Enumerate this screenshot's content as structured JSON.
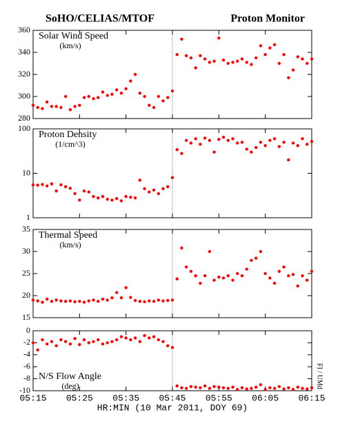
{
  "header": {
    "left": "SoHO/CELIAS/MTOF",
    "right": "Proton Monitor"
  },
  "credit": "FI / UMd",
  "chart_data": [
    {
      "type": "scatter",
      "title": "Solar Wind Speed",
      "subtitle": "(km/s)",
      "color": "#ff0000",
      "xlim": [
        "05:15",
        "06:15"
      ],
      "vline": "05:45",
      "ylim": [
        280,
        360
      ],
      "yticks": [
        280,
        300,
        320,
        340,
        360
      ],
      "x": [
        "05:15",
        "05:16",
        "05:17",
        "05:18",
        "05:19",
        "05:20",
        "05:21",
        "05:22",
        "05:23",
        "05:24",
        "05:25",
        "05:26",
        "05:27",
        "05:28",
        "05:29",
        "05:30",
        "05:31",
        "05:32",
        "05:33",
        "05:34",
        "05:35",
        "05:36",
        "05:37",
        "05:38",
        "05:39",
        "05:40",
        "05:41",
        "05:42",
        "05:43",
        "05:44",
        "05:45",
        "05:46",
        "05:47",
        "05:48",
        "05:49",
        "05:50",
        "05:51",
        "05:52",
        "05:53",
        "05:54",
        "05:55",
        "05:56",
        "05:57",
        "05:58",
        "05:59",
        "06:00",
        "06:01",
        "06:02",
        "06:03",
        "06:04",
        "06:05",
        "06:06",
        "06:07",
        "06:08",
        "06:09",
        "06:10",
        "06:11",
        "06:12",
        "06:13",
        "06:14",
        "06:15"
      ],
      "values": [
        292,
        290,
        289,
        295,
        291,
        291,
        290,
        300,
        288,
        291,
        292,
        299,
        300,
        298,
        299,
        304,
        301,
        302,
        306,
        303,
        307,
        314,
        320,
        303,
        300,
        292,
        290,
        300,
        296,
        299,
        305,
        338,
        352,
        337,
        335,
        326,
        337,
        334,
        331,
        332,
        353,
        333,
        330,
        331,
        332,
        334,
        331,
        329,
        335,
        346,
        338,
        344,
        347,
        330,
        338,
        317,
        324,
        336,
        334,
        330,
        334
      ]
    },
    {
      "type": "scatter",
      "title": "Proton Density",
      "subtitle": "(1/cm^3)",
      "color": "#ff0000",
      "log": true,
      "xlim": [
        "05:15",
        "06:15"
      ],
      "vline": "05:45",
      "ylim": [
        1,
        100
      ],
      "yticks": [
        1,
        10,
        100
      ],
      "x": [
        "05:15",
        "05:16",
        "05:17",
        "05:18",
        "05:19",
        "05:20",
        "05:21",
        "05:22",
        "05:23",
        "05:24",
        "05:25",
        "05:26",
        "05:27",
        "05:28",
        "05:29",
        "05:30",
        "05:31",
        "05:32",
        "05:33",
        "05:34",
        "05:35",
        "05:36",
        "05:37",
        "05:38",
        "05:39",
        "05:40",
        "05:41",
        "05:42",
        "05:43",
        "05:44",
        "05:45",
        "05:46",
        "05:47",
        "05:48",
        "05:49",
        "05:50",
        "05:51",
        "05:52",
        "05:53",
        "05:54",
        "05:55",
        "05:56",
        "05:57",
        "05:58",
        "05:59",
        "06:00",
        "06:01",
        "06:02",
        "06:03",
        "06:04",
        "06:05",
        "06:06",
        "06:07",
        "06:08",
        "06:09",
        "06:10",
        "06:11",
        "06:12",
        "06:13",
        "06:14",
        "06:15"
      ],
      "values": [
        5.5,
        5.4,
        5.6,
        5.2,
        5.8,
        4.0,
        5.5,
        5.0,
        4.6,
        3.5,
        2.5,
        4.0,
        3.8,
        3.0,
        2.8,
        3.0,
        2.6,
        2.5,
        2.7,
        2.4,
        3.0,
        2.9,
        2.8,
        7.0,
        4.5,
        3.8,
        4.2,
        3.5,
        4.5,
        5.0,
        8.0,
        34,
        28,
        55,
        48,
        60,
        45,
        62,
        55,
        30,
        58,
        65,
        55,
        60,
        48,
        50,
        35,
        30,
        38,
        50,
        42,
        55,
        60,
        40,
        50,
        20,
        48,
        42,
        60,
        45,
        52
      ]
    },
    {
      "type": "scatter",
      "title": "Thermal Speed",
      "subtitle": "(km/s)",
      "color": "#ff0000",
      "xlim": [
        "05:15",
        "06:15"
      ],
      "vline": "05:45",
      "ylim": [
        15,
        35
      ],
      "yticks": [
        15,
        20,
        25,
        30,
        35
      ],
      "x": [
        "05:15",
        "05:16",
        "05:17",
        "05:18",
        "05:19",
        "05:20",
        "05:21",
        "05:22",
        "05:23",
        "05:24",
        "05:25",
        "05:26",
        "05:27",
        "05:28",
        "05:29",
        "05:30",
        "05:31",
        "05:32",
        "05:33",
        "05:34",
        "05:35",
        "05:36",
        "05:37",
        "05:38",
        "05:39",
        "05:40",
        "05:41",
        "05:42",
        "05:43",
        "05:44",
        "05:45",
        "05:46",
        "05:47",
        "05:48",
        "05:49",
        "05:50",
        "05:51",
        "05:52",
        "05:53",
        "05:54",
        "05:55",
        "05:56",
        "05:57",
        "05:58",
        "05:59",
        "06:00",
        "06:01",
        "06:02",
        "06:03",
        "06:04",
        "06:05",
        "06:06",
        "06:07",
        "06:08",
        "06:09",
        "06:10",
        "06:11",
        "06:12",
        "06:13",
        "06:14",
        "06:15"
      ],
      "values": [
        19,
        18.8,
        18.5,
        19.2,
        18.7,
        19,
        18.8,
        18.7,
        18.8,
        18.6,
        18.7,
        18.5,
        18.8,
        19,
        18.7,
        19.2,
        19,
        19.5,
        20.7,
        19.5,
        21.8,
        19.6,
        18.9,
        18.7,
        18.6,
        18.8,
        18.7,
        19,
        18.8,
        18.9,
        19.0,
        23.8,
        30.8,
        26.5,
        25.5,
        24.5,
        22.8,
        24.5,
        30,
        23.5,
        24.2,
        24,
        24.5,
        23.5,
        25,
        24.5,
        26,
        28,
        28.5,
        30,
        25,
        24,
        22.8,
        25.5,
        26.5,
        24.5,
        24.8,
        22.2,
        24.5,
        23.5,
        25.5
      ]
    },
    {
      "type": "scatter",
      "title": "N/S Flow Angle",
      "subtitle": "(deg)",
      "color": "#ff0000",
      "xlim": [
        "05:15",
        "06:15"
      ],
      "vline": "05:45",
      "ylim": [
        -10,
        0
      ],
      "yticks": [
        -10,
        -8,
        -6,
        -4,
        -2,
        0
      ],
      "xticks": [
        "05:15",
        "05:25",
        "05:35",
        "05:45",
        "05:55",
        "06:05",
        "06:15"
      ],
      "xlabel": "HR:MIN (10 Mar 2011, DOY 69)",
      "x": [
        "05:15",
        "05:16",
        "05:17",
        "05:18",
        "05:19",
        "05:20",
        "05:21",
        "05:22",
        "05:23",
        "05:24",
        "05:25",
        "05:26",
        "05:27",
        "05:28",
        "05:29",
        "05:30",
        "05:31",
        "05:32",
        "05:33",
        "05:34",
        "05:35",
        "05:36",
        "05:37",
        "05:38",
        "05:39",
        "05:40",
        "05:41",
        "05:42",
        "05:43",
        "05:44",
        "05:45",
        "05:46",
        "05:47",
        "05:48",
        "05:49",
        "05:50",
        "05:51",
        "05:52",
        "05:53",
        "05:54",
        "05:55",
        "05:56",
        "05:57",
        "05:58",
        "05:59",
        "06:00",
        "06:01",
        "06:02",
        "06:03",
        "06:04",
        "06:05",
        "06:06",
        "06:07",
        "06:08",
        "06:09",
        "06:10",
        "06:11",
        "06:12",
        "06:13",
        "06:14",
        "06:15"
      ],
      "values": [
        -2,
        -3.2,
        -1.5,
        -2.2,
        -1.8,
        -2.5,
        -1.5,
        -1.8,
        -2.2,
        -1.3,
        -2.3,
        -1.5,
        -2,
        -1.8,
        -1.5,
        -2.2,
        -2,
        -1.8,
        -1.5,
        -1,
        -1.2,
        -1.5,
        -1.2,
        -1.8,
        -0.8,
        -1.2,
        -1,
        -1.5,
        -1.8,
        -2.5,
        -2.8,
        -9.2,
        -9.5,
        -9.6,
        -9.3,
        -9.4,
        -9.5,
        -9.2,
        -9.6,
        -9.3,
        -9.4,
        -9.5,
        -9.6,
        -9.4,
        -9.8,
        -9.5,
        -9.7,
        -9.6,
        -9.4,
        -9.0,
        -9.8,
        -9.5,
        -9.6,
        -9.3,
        -9.7,
        -9.5,
        -9.8,
        -9.4,
        -9.6,
        -9.7,
        -9.5
      ]
    }
  ]
}
